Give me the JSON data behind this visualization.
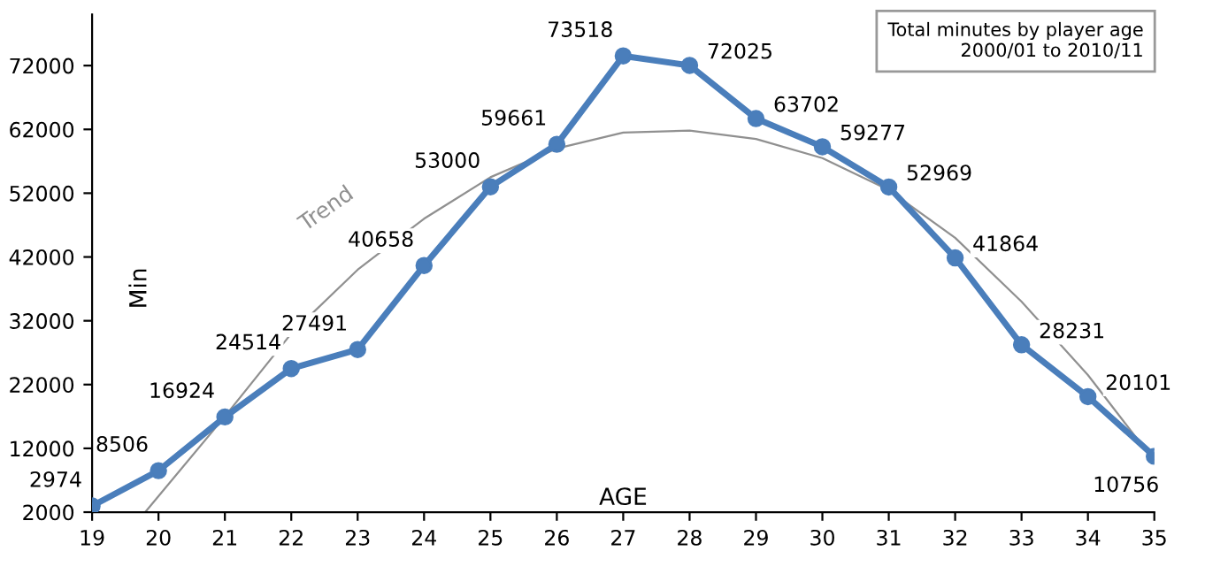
{
  "chart_data": {
    "type": "line",
    "title": "Total minutes by player age\n2000/01 to 2010/11",
    "xlabel": "AGE",
    "ylabel": "Min",
    "x": [
      19,
      20,
      21,
      22,
      23,
      24,
      25,
      26,
      27,
      28,
      29,
      30,
      31,
      32,
      33,
      34,
      35
    ],
    "series": [
      {
        "color": "#4a7ebb",
        "values": [
          2974,
          8506,
          16924,
          24514,
          27491,
          40658,
          53000,
          59661,
          73518,
          72025,
          63702,
          59277,
          52969,
          41864,
          28231,
          20101,
          10756
        ],
        "data_labels": true,
        "marker": "circle"
      },
      {
        "name": "Trend",
        "type": "line",
        "color": "#909090",
        "x": [
          19.8,
          21,
          22,
          23,
          24,
          25,
          26,
          27,
          28,
          29,
          30,
          31,
          32,
          33,
          34,
          35
        ],
        "values": [
          2000,
          17000,
          30000,
          40000,
          48000,
          54500,
          59000,
          61500,
          61800,
          60500,
          57500,
          52500,
          45000,
          35000,
          23500,
          10000
        ],
        "marker": "none"
      }
    ],
    "xlim": [
      19,
      35
    ],
    "xticks": [
      19,
      20,
      21,
      22,
      23,
      24,
      25,
      26,
      27,
      28,
      29,
      30,
      31,
      32,
      33,
      34,
      35
    ],
    "ylim": [
      2000,
      80000
    ],
    "yticks": [
      2000,
      12000,
      22000,
      32000,
      42000,
      52000,
      62000,
      72000
    ],
    "grid": false
  }
}
